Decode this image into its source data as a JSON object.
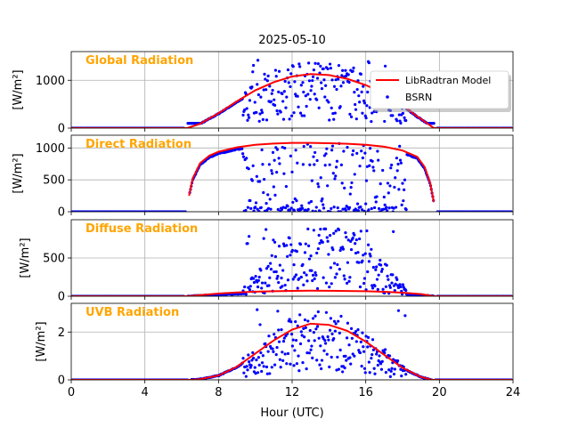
{
  "chart_data": {
    "type": "line",
    "title": "2025-05-10",
    "xlabel": "Hour (UTC)",
    "xlim": [
      0,
      24
    ],
    "xticks": [
      0,
      4,
      8,
      12,
      16,
      20,
      24
    ],
    "grid": true,
    "colors": {
      "model": "#ff0000",
      "bsrn": "#0000ff",
      "panel_title": "#ffa500",
      "grid": "#b0b0b0"
    },
    "legend": {
      "placement": "top-right",
      "entries": [
        "LibRadtran Model",
        "BSRN"
      ]
    },
    "panels": [
      {
        "name": "global",
        "title": "Global Radiation",
        "ylabel": "[W/m²]",
        "ylim": [
          0,
          1600
        ],
        "yticks": [
          0,
          1000
        ],
        "model_x": [
          6.3,
          7,
          8,
          9,
          10,
          11,
          12,
          13,
          14,
          15,
          16,
          17,
          18,
          18.7,
          19.3,
          19.7
        ],
        "model_y": [
          0,
          90,
          310,
          560,
          790,
          960,
          1080,
          1130,
          1110,
          1030,
          900,
          720,
          480,
          270,
          110,
          0
        ],
        "bsrn_clear_peak": 1100,
        "bsrn_min": 100,
        "bsrn_max": 1450,
        "legend": true
      },
      {
        "name": "direct",
        "title": "Direct Radiation",
        "ylabel": "[W/m²]",
        "ylim": [
          0,
          1200
        ],
        "yticks": [
          0,
          500,
          1000
        ],
        "model_x": [
          6.4,
          6.6,
          7,
          7.5,
          8,
          9,
          10,
          11,
          12,
          13,
          14,
          15,
          16,
          17,
          18,
          18.8,
          19.2,
          19.5,
          19.7
        ],
        "model_y": [
          250,
          520,
          760,
          880,
          940,
          1010,
          1050,
          1070,
          1080,
          1080,
          1075,
          1065,
          1050,
          1020,
          960,
          860,
          700,
          450,
          150
        ],
        "bsrn_min": 0,
        "bsrn_max": 1090
      },
      {
        "name": "diffuse",
        "title": "Diffuse Radiation",
        "ylabel": "[W/m²]",
        "ylim": [
          0,
          1000
        ],
        "yticks": [
          0,
          500
        ],
        "model_x": [
          6.3,
          7,
          8,
          9,
          10,
          11,
          12,
          13,
          14,
          15,
          16,
          17,
          18,
          19,
          19.7
        ],
        "model_y": [
          0,
          15,
          35,
          50,
          60,
          66,
          70,
          72,
          71,
          69,
          65,
          58,
          47,
          28,
          0
        ],
        "bsrn_min": 0,
        "bsrn_max": 880
      },
      {
        "name": "uvb",
        "title": "UVB Radiation",
        "ylabel": "[W/m²]",
        "ylim": [
          0,
          3.2
        ],
        "yticks": [
          0,
          2
        ],
        "model_x": [
          6.5,
          7,
          8,
          9,
          10,
          11,
          12,
          13,
          14,
          15,
          16,
          17,
          18,
          19,
          19.6
        ],
        "model_y": [
          0,
          0.03,
          0.18,
          0.55,
          1.1,
          1.65,
          2.1,
          2.35,
          2.3,
          2.05,
          1.6,
          1.05,
          0.5,
          0.12,
          0
        ],
        "bsrn_min": 0,
        "bsrn_max": 3.0
      }
    ]
  }
}
